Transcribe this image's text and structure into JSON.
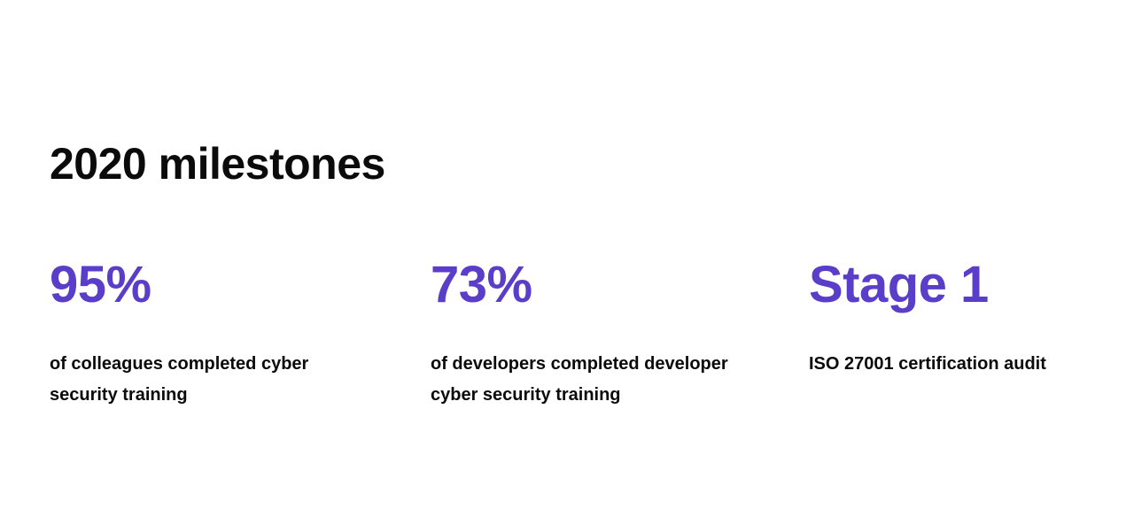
{
  "theme": {
    "accent": "#5a3dc8",
    "text": "#0b0b0b",
    "background": "#ffffff"
  },
  "section": {
    "title": "2020 milestones"
  },
  "stats": [
    {
      "value": "95%",
      "description": "of colleagues completed cyber security training"
    },
    {
      "value": "73%",
      "description": "of developers completed developer cyber security training"
    },
    {
      "value": "Stage 1",
      "description": "ISO 27001 certification audit"
    }
  ]
}
